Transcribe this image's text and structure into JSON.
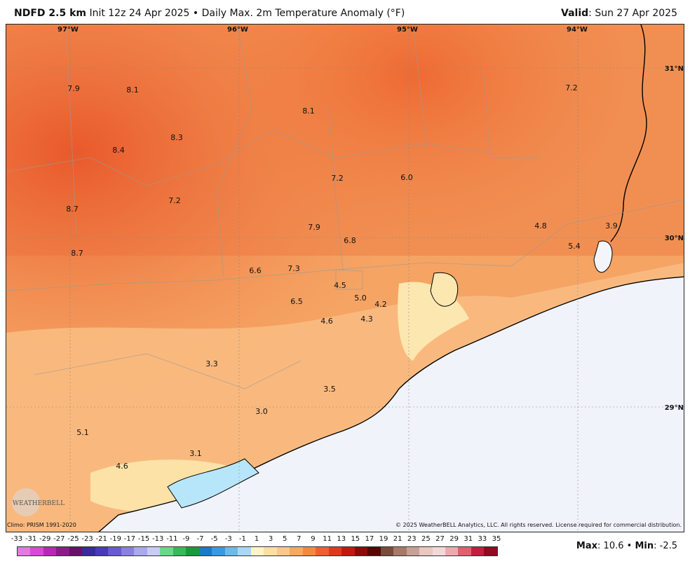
{
  "header": {
    "product_bold": "NDFD 2.5 km",
    "init_text": "Init 12z 24 Apr 2025",
    "separator": "•",
    "field_text": "Daily Max. 2m Temperature Anomaly (°F)",
    "valid_bold": "Valid",
    "valid_text": ": Sun 27 Apr 2025"
  },
  "map": {
    "lon_ticks": [
      "97°W",
      "96°W",
      "95°W",
      "94°W"
    ],
    "lat_ticks": [
      "31°N",
      "30°N",
      "29°N"
    ],
    "values": [
      "7.9",
      "8.1",
      "8.1",
      "7.2",
      "8.3",
      "8.4",
      "7.2",
      "6.0",
      "8.7",
      "7.2",
      "7.9",
      "4.8",
      "3.9",
      "6.8",
      "5.4",
      "8.7",
      "6.6",
      "7.3",
      "4.5",
      "5.0",
      "4.2",
      "6.5",
      "4.6",
      "4.3",
      "3.3",
      "3.5",
      "3.0",
      "5.1",
      "3.1",
      "4.6"
    ],
    "colors": {
      "land_warm": "#f5a062",
      "land_hot": "#ee6f36",
      "land_mild": "#fbc98c",
      "coast_cool": "#fde7b0",
      "water": "#f1f3fb",
      "bay": "#b7e6fb"
    }
  },
  "footer": {
    "climo": "Climo: PRISM 1991-2020",
    "copyright": "© 2025 WeatherBELL Analytics, LLC. All rights reserved. License required for commercial distribution.",
    "logo_text": "WeatherBELL"
  },
  "legend": {
    "labels": [
      "-33",
      "-31",
      "-29",
      "-27",
      "-25",
      "-23",
      "-21",
      "-19",
      "-17",
      "-15",
      "-13",
      "-11",
      "-9",
      "-7",
      "-5",
      "-3",
      "-1",
      "1",
      "3",
      "5",
      "7",
      "9",
      "11",
      "13",
      "15",
      "17",
      "19",
      "21",
      "23",
      "25",
      "27",
      "29",
      "31",
      "33",
      "35"
    ],
    "colors": [
      "#e478e4",
      "#d64ad6",
      "#b828b8",
      "#8c1a8c",
      "#6a0f6a",
      "#3a2a9a",
      "#4a3ab8",
      "#6a5ad0",
      "#8a80e0",
      "#aaa8ee",
      "#c8ccf4",
      "#6ad88a",
      "#38b858",
      "#1a9a3a",
      "#1a7ac8",
      "#3a9ae0",
      "#6abaee",
      "#a8d8f6",
      "#fef4c8",
      "#fde0a0",
      "#fbc88a",
      "#f8a860",
      "#f58840",
      "#ee6030",
      "#dd3a1a",
      "#c01a10",
      "#8c0a08",
      "#5a0404",
      "#7a4a3a",
      "#a87868",
      "#c8a094",
      "#e8c8c0",
      "#f4d8d8",
      "#f0a8b0",
      "#e06070",
      "#c02040",
      "#900a20"
    ],
    "max_label": "Max",
    "max_value": ": 10.6",
    "sep": "•",
    "min_label": "Min",
    "min_value": ": -2.5"
  }
}
